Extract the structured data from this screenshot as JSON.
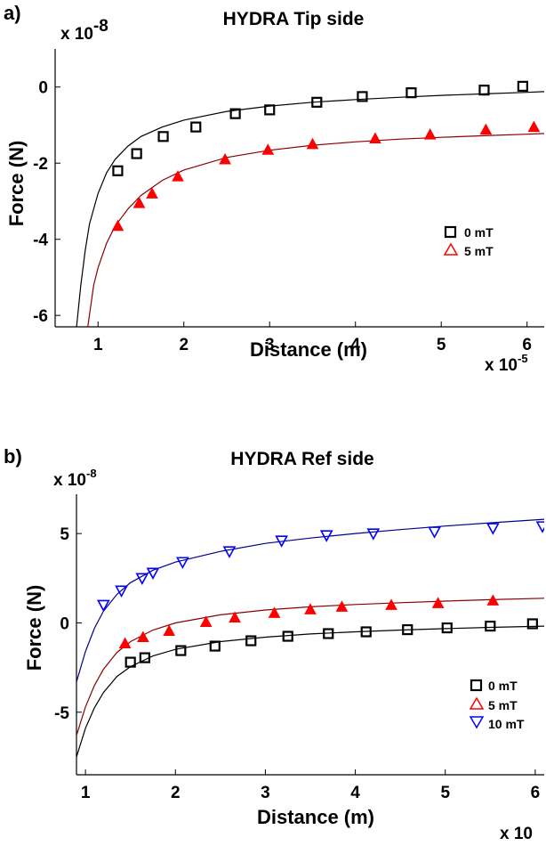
{
  "colors": {
    "background": "#ffffff",
    "axis": "#000000",
    "series_0mT": "#000000",
    "series_5mT": "#ff0000",
    "series_10mT": "#0000ff",
    "fit_red_line": "#8b0000",
    "fit_black_line": "#000000",
    "fit_blue_line": "#00008b"
  },
  "chart_data": [
    {
      "panel_label": "a)",
      "type": "scatter",
      "title": "HYDRA Tip side",
      "xlabel": "Distance (m)",
      "ylabel": "Force (N)",
      "x_multiplier": "x 10",
      "x_exponent": "-5",
      "y_multiplier": "x 10",
      "y_exponent": "-8",
      "xlim": [
        0.5,
        6.2
      ],
      "ylim": [
        -6.3,
        1.0
      ],
      "xticks": [
        "1",
        "2",
        "3",
        "4",
        "5",
        "6"
      ],
      "xtick_values": [
        1,
        2,
        3,
        4,
        5,
        6
      ],
      "yticks": [
        "0",
        "-2",
        "-4",
        "-6"
      ],
      "ytick_values": [
        0,
        -2,
        -4,
        -6
      ],
      "legend_position": "right",
      "series": [
        {
          "name": "0 mT",
          "marker": "square",
          "color": "#000000",
          "x": [
            1.23,
            1.45,
            1.76,
            2.14,
            2.6,
            3.0,
            3.55,
            4.08,
            4.65,
            5.5,
            5.95
          ],
          "y": [
            -2.2,
            -1.75,
            -1.3,
            -1.05,
            -0.7,
            -0.6,
            -0.4,
            -0.25,
            -0.15,
            -0.08,
            0.02
          ]
        },
        {
          "name": "5 mT",
          "marker": "triangle-up",
          "color": "#ff0000",
          "x": [
            1.23,
            1.48,
            1.63,
            1.93,
            2.48,
            2.98,
            3.5,
            4.23,
            4.87,
            5.52,
            6.08
          ],
          "y": [
            -3.65,
            -3.05,
            -2.8,
            -2.35,
            -1.9,
            -1.65,
            -1.5,
            -1.35,
            -1.25,
            -1.12,
            -1.05
          ]
        }
      ],
      "fits": [
        {
          "color": "#000000",
          "x": [
            0.75,
            0.8,
            0.85,
            0.9,
            1.0,
            1.1,
            1.2,
            1.35,
            1.5,
            1.75,
            2.0,
            2.5,
            3.0,
            3.5,
            4.0,
            4.5,
            5.0,
            5.5,
            6.0,
            6.2
          ],
          "y": [
            -6.3,
            -5.2,
            -4.3,
            -3.6,
            -2.8,
            -2.25,
            -1.9,
            -1.55,
            -1.3,
            -1.05,
            -0.87,
            -0.64,
            -0.5,
            -0.4,
            -0.33,
            -0.27,
            -0.22,
            -0.18,
            -0.14,
            -0.12
          ]
        },
        {
          "color": "#8b0000",
          "x": [
            0.88,
            0.95,
            1.0,
            1.1,
            1.2,
            1.35,
            1.5,
            1.75,
            2.0,
            2.5,
            3.0,
            3.5,
            4.0,
            4.5,
            5.0,
            5.5,
            6.0,
            6.2
          ],
          "y": [
            -6.3,
            -5.2,
            -4.75,
            -4.1,
            -3.65,
            -3.2,
            -2.85,
            -2.45,
            -2.18,
            -1.85,
            -1.66,
            -1.53,
            -1.44,
            -1.37,
            -1.32,
            -1.28,
            -1.24,
            -1.22
          ]
        }
      ]
    },
    {
      "panel_label": "b)",
      "type": "scatter",
      "title": "HYDRA Ref side",
      "xlabel": "Distance (m)",
      "ylabel": "Force (N)",
      "x_multiplier": "x 10",
      "y_multiplier": "x 10",
      "y_exponent": "-8",
      "xlim": [
        0.9,
        6.1
      ],
      "ylim": [
        -8.5,
        7.2
      ],
      "xticks": [
        "1",
        "2",
        "3",
        "4",
        "5",
        "6"
      ],
      "xtick_values": [
        1,
        2,
        3,
        4,
        5,
        6
      ],
      "yticks": [
        "5",
        "0",
        "-5"
      ],
      "ytick_values": [
        5,
        0,
        -5
      ],
      "legend_position": "right",
      "series": [
        {
          "name": "0 mT",
          "marker": "square",
          "color": "#000000",
          "x": [
            1.5,
            1.66,
            2.06,
            2.44,
            2.84,
            3.25,
            3.7,
            4.12,
            4.58,
            5.02,
            5.5,
            5.97
          ],
          "y": [
            -2.2,
            -1.95,
            -1.55,
            -1.3,
            -1.0,
            -0.75,
            -0.6,
            -0.5,
            -0.38,
            -0.28,
            -0.18,
            -0.05
          ]
        },
        {
          "name": "5 mT",
          "marker": "triangle-up",
          "color": "#ff0000",
          "x": [
            1.44,
            1.64,
            1.93,
            2.34,
            2.66,
            3.1,
            3.5,
            3.85,
            4.4,
            4.92,
            5.53
          ],
          "y": [
            -1.15,
            -0.8,
            -0.45,
            0.05,
            0.3,
            0.55,
            0.75,
            0.9,
            1.0,
            1.1,
            1.25
          ]
        },
        {
          "name": "10 mT",
          "marker": "triangle-down",
          "color": "#0000ff",
          "x": [
            1.2,
            1.4,
            1.63,
            1.75,
            2.08,
            2.6,
            3.18,
            3.68,
            4.2,
            4.88,
            5.53,
            6.08
          ],
          "y": [
            1.0,
            1.8,
            2.5,
            2.8,
            3.4,
            4.0,
            4.6,
            4.9,
            5.0,
            5.1,
            5.3,
            5.4
          ]
        }
      ],
      "fits": [
        {
          "color": "#000000",
          "x": [
            0.9,
            1.0,
            1.1,
            1.2,
            1.35,
            1.5,
            1.75,
            2.0,
            2.5,
            3.0,
            3.5,
            4.0,
            4.5,
            5.0,
            5.5,
            6.1
          ],
          "y": [
            -7.5,
            -5.9,
            -4.75,
            -3.9,
            -3.0,
            -2.45,
            -1.85,
            -1.48,
            -1.05,
            -0.8,
            -0.62,
            -0.5,
            -0.4,
            -0.32,
            -0.25,
            -0.18
          ]
        },
        {
          "color": "#8b0000",
          "x": [
            0.9,
            1.0,
            1.1,
            1.2,
            1.35,
            1.5,
            1.75,
            2.0,
            2.5,
            3.0,
            3.5,
            4.0,
            4.5,
            5.0,
            5.5,
            6.1
          ],
          "y": [
            -6.3,
            -4.7,
            -3.5,
            -2.6,
            -1.65,
            -1.05,
            -0.4,
            0.0,
            0.45,
            0.72,
            0.9,
            1.03,
            1.13,
            1.22,
            1.3,
            1.38
          ]
        },
        {
          "color": "#00008b",
          "x": [
            0.9,
            1.0,
            1.1,
            1.2,
            1.35,
            1.5,
            1.75,
            2.0,
            2.5,
            3.0,
            3.5,
            4.0,
            4.5,
            5.0,
            5.5,
            6.1
          ],
          "y": [
            -3.3,
            -1.6,
            -0.3,
            0.65,
            1.6,
            2.25,
            2.95,
            3.4,
            4.0,
            4.45,
            4.75,
            5.0,
            5.22,
            5.42,
            5.6,
            5.8
          ]
        }
      ]
    }
  ]
}
